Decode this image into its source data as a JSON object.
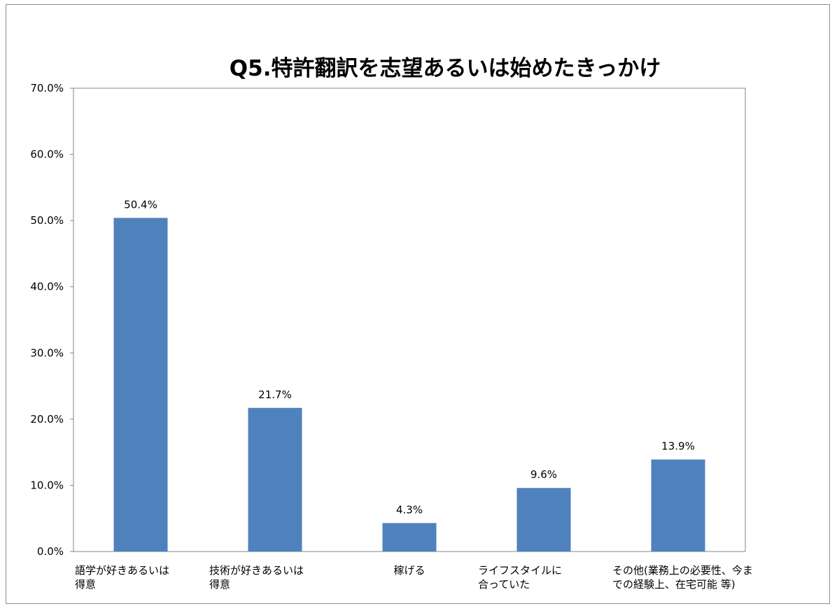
{
  "chart_data": {
    "type": "bar",
    "title": "Q5.特許翻訳を志望あるいは始めたきっかけ",
    "xlabel": "",
    "ylabel": "",
    "categories": [
      [
        "語学が好きあるいは",
        "得意"
      ],
      [
        "技術が好きあるいは",
        "得意"
      ],
      [
        "稼げる"
      ],
      [
        "ライフスタイルに",
        "合っていた"
      ],
      [
        "その他(業務上の必要性、今ま",
        "での経験上、在宅可能  等)"
      ]
    ],
    "values": [
      50.4,
      21.7,
      4.3,
      9.6,
      13.9
    ],
    "value_labels": [
      "50.4%",
      "21.7%",
      "4.3%",
      "9.6%",
      "13.9%"
    ],
    "ylim": [
      0,
      70
    ],
    "yticks": [
      {
        "value": 0,
        "label": "0.0%"
      },
      {
        "value": 10,
        "label": "10.0%"
      },
      {
        "value": 20,
        "label": "20.0%"
      },
      {
        "value": 30,
        "label": "30.0%"
      },
      {
        "value": 40,
        "label": "40.0%"
      },
      {
        "value": 50,
        "label": "50.0%"
      },
      {
        "value": 60,
        "label": "60.0%"
      },
      {
        "value": 70,
        "label": "70.0%"
      }
    ],
    "grid": false,
    "legend": "none",
    "bar_color": "#4f81bd",
    "axis_color": "#868686"
  }
}
